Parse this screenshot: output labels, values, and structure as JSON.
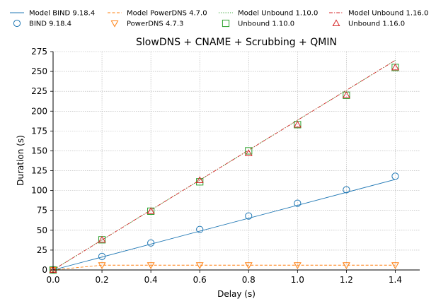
{
  "chart_data": {
    "type": "line",
    "title": "SlowDNS + CNAME + Scrubbing + QMIN",
    "xlabel": "Delay (s)",
    "ylabel": "Duration (s)",
    "xlim": [
      0,
      1.5
    ],
    "ylim": [
      0,
      275
    ],
    "xticks": [
      0.0,
      0.2,
      0.4,
      0.6,
      0.8,
      1.0,
      1.2,
      1.4
    ],
    "xtick_labels": [
      "0.0",
      "0.2",
      "0.4",
      "0.6",
      "0.8",
      "1.0",
      "1.2",
      "1.4"
    ],
    "yticks": [
      0,
      25,
      50,
      75,
      100,
      125,
      150,
      175,
      200,
      225,
      250,
      275
    ],
    "ytick_labels": [
      "0",
      "25",
      "50",
      "75",
      "100",
      "125",
      "150",
      "175",
      "200",
      "225",
      "250",
      "275"
    ],
    "grid": true,
    "legend_position": "top",
    "model_series": [
      {
        "name": "Model BIND 9.18.4",
        "color": "#1f77b4",
        "dash": "solid",
        "x": [
          0.0,
          1.4
        ],
        "y": [
          0,
          114
        ]
      },
      {
        "name": "Model PowerDNS 4.7.0",
        "color": "#ff7f0e",
        "dash": "dashed",
        "x": [
          0.0,
          0.2,
          1.4
        ],
        "y": [
          0,
          6,
          6
        ]
      },
      {
        "name": "Model Unbound 1.10.0",
        "color": "#2ca02c",
        "dash": "dotted",
        "x": [
          0.0,
          1.4
        ],
        "y": [
          0,
          264
        ]
      },
      {
        "name": "Model Unbound 1.16.0",
        "color": "#d62728",
        "dash": "dashdot",
        "x": [
          0.0,
          1.4
        ],
        "y": [
          0,
          264
        ]
      }
    ],
    "measured_series": [
      {
        "name": "BIND 9.18.4",
        "color": "#1f77b4",
        "marker": "circle",
        "x": [
          0.0,
          0.2,
          0.4,
          0.6,
          0.8,
          1.0,
          1.2,
          1.4
        ],
        "y": [
          0,
          17,
          34,
          51,
          68,
          84,
          101,
          118
        ]
      },
      {
        "name": "PowerDNS 4.7.3",
        "color": "#ff7f0e",
        "marker": "triangle-down",
        "x": [
          0.0,
          0.2,
          0.4,
          0.6,
          0.8,
          1.0,
          1.2,
          1.4
        ],
        "y": [
          0,
          6,
          6,
          6,
          6,
          6,
          6,
          6
        ]
      },
      {
        "name": "Unbound 1.10.0",
        "color": "#2ca02c",
        "marker": "square",
        "x": [
          0.0,
          0.2,
          0.4,
          0.6,
          0.8,
          1.0,
          1.2,
          1.4
        ],
        "y": [
          0,
          38,
          74,
          111,
          150,
          183,
          220,
          255
        ]
      },
      {
        "name": "Unbound 1.16.0",
        "color": "#d62728",
        "marker": "triangle-up",
        "x": [
          0.0,
          0.2,
          0.4,
          0.6,
          0.8,
          1.0,
          1.2,
          1.4
        ],
        "y": [
          0,
          38,
          74,
          113,
          147,
          183,
          220,
          255
        ]
      }
    ]
  }
}
